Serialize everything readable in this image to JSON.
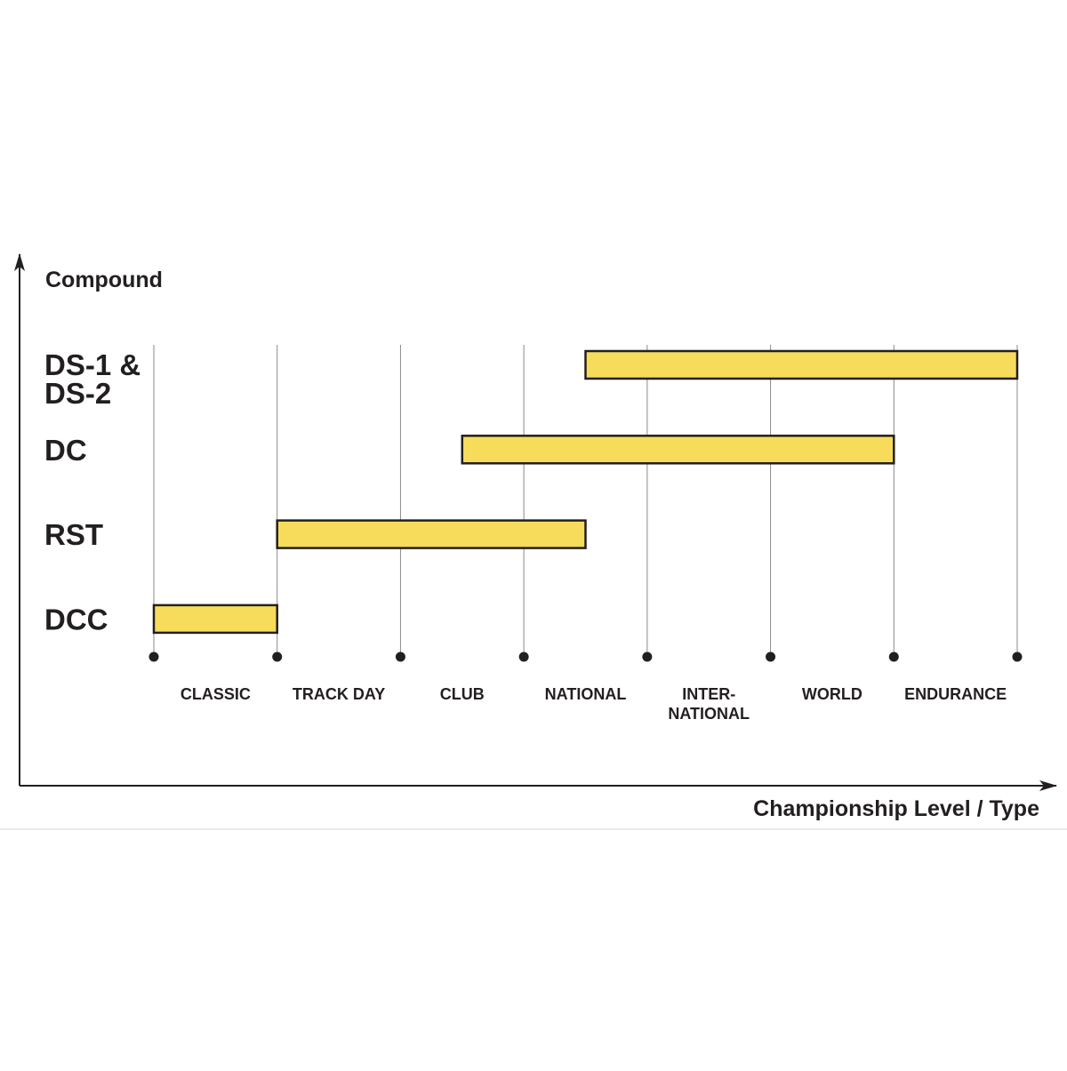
{
  "chart_data": {
    "type": "bar",
    "orientation": "horizontal-range",
    "ylabel": "Compound",
    "xlabel": "Championship Level / Type",
    "categories": [
      [
        "CLASSIC"
      ],
      [
        "TRACK DAY"
      ],
      [
        "CLUB"
      ],
      [
        "NATIONAL"
      ],
      [
        "INTER-",
        "NATIONAL"
      ],
      [
        "WORLD"
      ],
      [
        "ENDURANCE"
      ]
    ],
    "rows": [
      {
        "label": [
          "DS-1 &",
          "DS-2"
        ],
        "start": 3.5,
        "end": 7
      },
      {
        "label": [
          "DC"
        ],
        "start": 2.5,
        "end": 6
      },
      {
        "label": [
          "RST"
        ],
        "start": 1,
        "end": 3.5
      },
      {
        "label": [
          "DCC"
        ],
        "start": 0,
        "end": 1
      }
    ],
    "xlim": [
      0,
      7
    ],
    "grid": true,
    "colors": {
      "bar_fill": "#f6dc5a",
      "bar_stroke": "#231f20",
      "axis": "#231f20",
      "grid": "#8a8a8a"
    }
  }
}
